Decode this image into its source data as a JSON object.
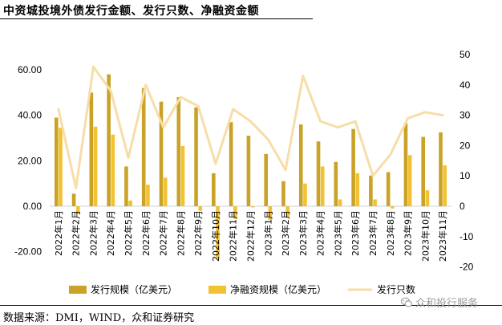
{
  "chart_data": {
    "type": "bar",
    "title": "中资城投境外债发行金额、发行只数、净融资金额",
    "categories": [
      "2022年1月",
      "2022年2月",
      "2022年3月",
      "2022年4月",
      "2022年5月",
      "2022年6月",
      "2022年7月",
      "2022年8月",
      "2022年9月",
      "2022年10月",
      "2022年11月",
      "2022年12月",
      "2023年1月",
      "2023年2月",
      "2023年3月",
      "2023年4月",
      "2023年5月",
      "2023年6月",
      "2023年7月",
      "2023年8月",
      "2023年9月",
      "2023年10月",
      "2023年11月"
    ],
    "xtick_labels": [
      "2022年1月",
      "2022年2月",
      "2022年3月",
      "2022年4月",
      "2022年5月",
      "2022年6月",
      "2022年7月",
      "2022年8月",
      "2022年9月",
      "2022年10月",
      "2022年11月",
      "2022年12月",
      "2023年1月",
      "2023年2月",
      "2023年3月",
      "2023年4月",
      "2023年5月",
      "2023年6月",
      "2023年7月",
      "2023年8月",
      "2023年9月",
      "2023年10月",
      "2023年11月"
    ],
    "series": [
      {
        "name": "发行规模（亿美元）",
        "type": "bar",
        "axis": "left",
        "color": "#C9A227",
        "values": [
          39,
          5.5,
          50,
          58,
          17.5,
          52,
          46,
          48,
          43.5,
          14.5,
          37,
          31,
          23,
          11,
          36,
          28.5,
          19.5,
          34,
          13.5,
          15,
          36.5,
          30.5,
          32.5
        ]
      },
      {
        "name": "净融资规模（亿美元）",
        "type": "bar",
        "axis": "left",
        "color": "#F2C230",
        "values": [
          34.5,
          -3.5,
          35,
          31.5,
          2.5,
          9.5,
          12.5,
          26.5,
          -2,
          -23,
          -5.5,
          -0.5,
          -6,
          -5,
          10,
          17.5,
          3,
          14.5,
          3,
          -1,
          22.5,
          7,
          18
        ]
      },
      {
        "name": "发行只数",
        "type": "line",
        "axis": "right",
        "color": "#F7DDA8",
        "values": [
          32,
          6,
          46,
          38,
          16,
          40,
          26,
          36,
          33,
          14,
          32,
          28,
          22,
          12,
          43,
          28,
          26,
          28,
          10,
          17,
          29,
          31,
          30
        ]
      }
    ],
    "ylim_left": [
      -20,
      60
    ],
    "yticks_left": [
      "-20.00",
      "0.00",
      "20.00",
      "40.00",
      "60.00"
    ],
    "yticks_left_values": [
      -20,
      0,
      20,
      40,
      60
    ],
    "ylim_right": [
      -20,
      50
    ],
    "yticks_right": [
      "-20",
      "-10",
      "0",
      "10",
      "20",
      "30",
      "40",
      "50"
    ],
    "yticks_right_values": [
      -20,
      -10,
      0,
      10,
      20,
      30,
      40,
      50
    ],
    "legend_placement": "bottom"
  },
  "source_note": "数据来源：DMI，WIND，众和证券研究",
  "watermark": {
    "text": "众和投行服务",
    "icon": "wechat-icon"
  }
}
